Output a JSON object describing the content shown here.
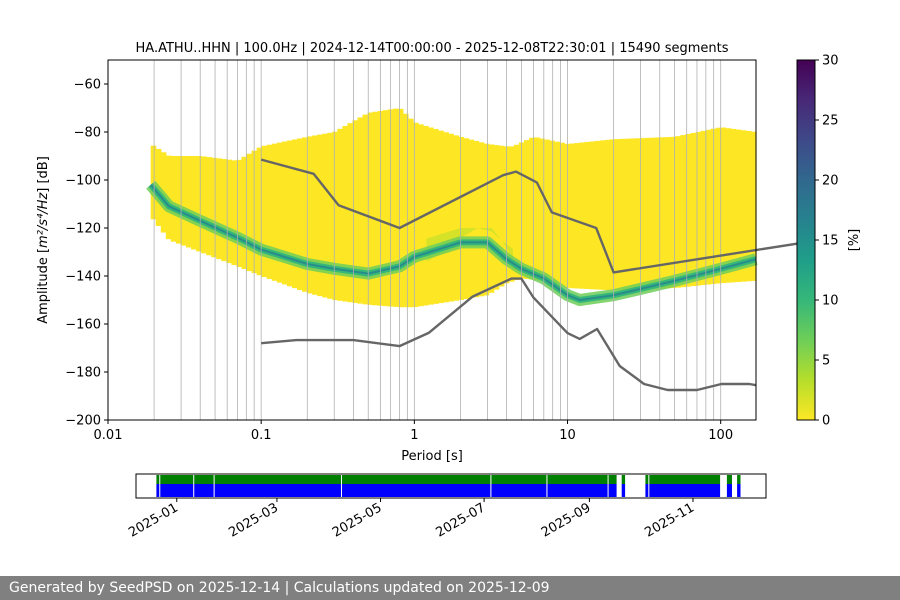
{
  "footer": "Generated by SeedPSD on 2025-12-14 | Calculations updated on 2025-12-09",
  "chart_data": [
    {
      "type": "heatmap",
      "title": "HA.ATHU..HHN | 100.0Hz | 2024-12-14T00:00:00 - 2025-12-08T22:30:01 | 15490 segments",
      "xlabel": "Period [s]",
      "ylabel_prefix": "Amplitude [",
      "ylabel_units": "m²/s⁴/Hz",
      "ylabel_suffix": "] [dB]",
      "xscale": "log",
      "xlim": [
        0.01,
        170
      ],
      "ylim": [
        -200,
        -50
      ],
      "x_ticks": [
        0.01,
        0.1,
        1,
        10,
        100
      ],
      "x_tick_labels": [
        "0.01",
        "0.1",
        "1",
        "10",
        "100"
      ],
      "y_ticks": [
        -200,
        -180,
        -160,
        -140,
        -120,
        -100,
        -80,
        -60
      ],
      "y_tick_labels": [
        "−200",
        "−180",
        "−160",
        "−140",
        "−120",
        "−100",
        "−80",
        "−60"
      ],
      "grid": true,
      "grid_lines_period": [
        0.02,
        0.03,
        0.04,
        0.05,
        0.06,
        0.07,
        0.08,
        0.09,
        0.2,
        0.3,
        0.4,
        0.5,
        0.6,
        0.7,
        0.8,
        0.9,
        2,
        3,
        4,
        5,
        6,
        7,
        8,
        9,
        20,
        30,
        40,
        50,
        60,
        70,
        80,
        90
      ],
      "colorbar": {
        "label": "[%]",
        "range": [
          0,
          30
        ],
        "ticks": [
          0,
          5,
          10,
          15,
          20,
          25,
          30
        ],
        "tick_labels": [
          "0",
          "5",
          "10",
          "15",
          "20",
          "25",
          "30"
        ],
        "colors": [
          "#fde725",
          "#b5de2b",
          "#6ece58",
          "#35b779",
          "#1f9e89",
          "#26828e",
          "#31688e",
          "#3e4989",
          "#482878",
          "#440154"
        ]
      },
      "envelope_upper": {
        "period": [
          0.019,
          0.025,
          0.04,
          0.07,
          0.1,
          0.2,
          0.3,
          0.5,
          0.8,
          1.0,
          2.0,
          3.0,
          4.0,
          4.4,
          6.0,
          10.0,
          20.0,
          50.0,
          100.0,
          170.0
        ],
        "db": [
          -85,
          -90,
          -90,
          -92,
          -86,
          -82,
          -80,
          -72,
          -70,
          -76,
          -82,
          -85,
          -86,
          -86,
          -82,
          -85,
          -83,
          -82,
          -78,
          -80
        ]
      },
      "envelope_lower": {
        "period": [
          0.019,
          0.025,
          0.04,
          0.07,
          0.1,
          0.2,
          0.3,
          0.5,
          0.8,
          1.0,
          2.0,
          3.0,
          4.0,
          5.0,
          7.0,
          10.0,
          20.0,
          50.0,
          100.0,
          170.0
        ],
        "db": [
          -115,
          -125,
          -130,
          -136,
          -140,
          -147,
          -150,
          -152,
          -153,
          -153,
          -150,
          -148,
          -143,
          -141,
          -142,
          -145,
          -146,
          -145,
          -143,
          -142
        ]
      },
      "mode_curve": {
        "period": [
          0.019,
          0.025,
          0.04,
          0.07,
          0.1,
          0.2,
          0.3,
          0.5,
          0.8,
          1.0,
          2.0,
          3.0,
          4.0,
          5.0,
          7.0,
          10.0,
          12.0,
          20.0,
          50.0,
          100.0,
          170.0
        ],
        "db": [
          -102,
          -111,
          -117,
          -124,
          -129,
          -135,
          -137,
          -139,
          -136,
          -132,
          -126,
          -126,
          -133,
          -137,
          -141,
          -148,
          -150,
          -148,
          -142,
          -137,
          -133
        ]
      },
      "dense_blob": {
        "period": [
          1.2,
          1.6,
          2.0,
          2.6,
          3.2,
          3.8,
          4.4
        ],
        "db": [
          -134,
          -130,
          -124,
          -120,
          -120,
          -126,
          -133
        ]
      },
      "nhnm": {
        "period": [
          0.1,
          0.22,
          0.32,
          0.8,
          3.8,
          4.6,
          6.3,
          7.9,
          15.4,
          20,
          354.8
        ],
        "db": [
          -91.5,
          -97.4,
          -110.5,
          -120.0,
          -98.0,
          -96.5,
          -101.0,
          -113.5,
          -120.0,
          -138.5,
          -126.0
        ]
      },
      "nlnm": {
        "period": [
          0.1,
          0.17,
          0.4,
          0.8,
          1.24,
          2.4,
          4.3,
          5.0,
          6.0,
          10.0,
          12.0,
          15.6,
          21.9,
          31.6,
          45.0,
          70.0,
          101.0,
          154.0,
          170.0
        ],
        "db": [
          -168.0,
          -166.7,
          -166.7,
          -169.2,
          -163.7,
          -148.6,
          -141.1,
          -141.1,
          -149.0,
          -163.8,
          -166.2,
          -162.1,
          -177.5,
          -185.0,
          -187.5,
          -187.5,
          -185.0,
          -185.0,
          -185.5
        ]
      }
    },
    {
      "type": "timeline",
      "date_range": [
        "2024-12-14",
        "2025-12-08"
      ],
      "x_ticks": [
        "2025-01-01",
        "2025-03-01",
        "2025-05-01",
        "2025-07-01",
        "2025-09-01",
        "2025-11-01"
      ],
      "x_tick_labels": [
        "2025-01",
        "2025-03",
        "2025-05",
        "2025-07",
        "2025-09",
        "2025-11"
      ],
      "series": [
        {
          "color": "#008000",
          "intervals": [
            [
              "2024-12-20",
              "2025-09-17"
            ],
            [
              "2025-09-20",
              "2025-09-22"
            ],
            [
              "2025-10-04",
              "2025-11-17"
            ],
            [
              "2025-11-21",
              "2025-11-24"
            ],
            [
              "2025-11-27",
              "2025-11-29"
            ]
          ]
        },
        {
          "color": "#0000ff",
          "intervals": [
            [
              "2024-12-20",
              "2025-09-17"
            ],
            [
              "2025-09-20",
              "2025-09-22"
            ],
            [
              "2025-10-04",
              "2025-11-17"
            ],
            [
              "2025-11-21",
              "2025-11-24"
            ],
            [
              "2025-11-27",
              "2025-11-29"
            ]
          ]
        }
      ],
      "gap_marks": [
        "2024-12-22",
        "2025-01-11",
        "2025-01-23",
        "2025-04-08",
        "2025-07-05",
        "2025-08-07",
        "2025-09-12",
        "2025-10-06"
      ]
    }
  ]
}
